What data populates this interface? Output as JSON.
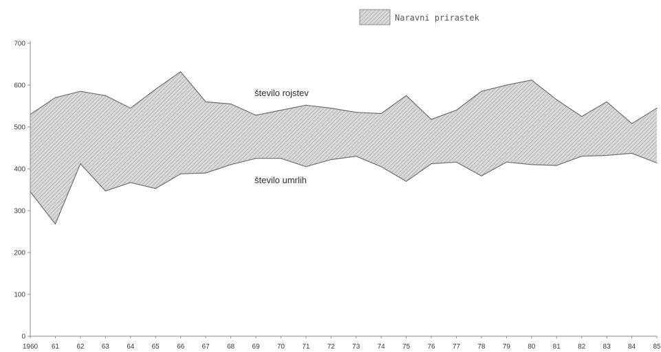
{
  "chart_data": {
    "type": "area",
    "legend": {
      "label": "Naravni prirastek",
      "placement": "top-right"
    },
    "x": [
      "1960",
      "61",
      "62",
      "63",
      "64",
      "65",
      "66",
      "67",
      "68",
      "69",
      "70",
      "71",
      "72",
      "73",
      "74",
      "75",
      "76",
      "77",
      "78",
      "79",
      "80",
      "81",
      "82",
      "83",
      "84",
      "85"
    ],
    "series": [
      {
        "name": "število rojstev",
        "values": [
          530,
          570,
          585,
          575,
          545,
          590,
          632,
          560,
          555,
          528,
          540,
          552,
          545,
          535,
          532,
          575,
          518,
          540,
          585,
          600,
          612,
          565,
          525,
          560,
          508,
          545
        ]
      },
      {
        "name": "število umrlih",
        "values": [
          345,
          268,
          412,
          347,
          367,
          353,
          388,
          390,
          410,
          425,
          425,
          405,
          422,
          430,
          405,
          370,
          412,
          416,
          383,
          416,
          410,
          408,
          430,
          432,
          437,
          414
        ]
      }
    ],
    "ylim": [
      0,
      700
    ],
    "yticks": [
      "0",
      "100",
      "200",
      "300",
      "400",
      "500",
      "600",
      "700"
    ],
    "grid": false,
    "fill_between": true,
    "colors": {
      "fill": "#d4d4d4",
      "hatch": "#9c9c9c",
      "line": "#6e6e6e",
      "axis": "#8a8a8a",
      "text": "#333333"
    }
  }
}
